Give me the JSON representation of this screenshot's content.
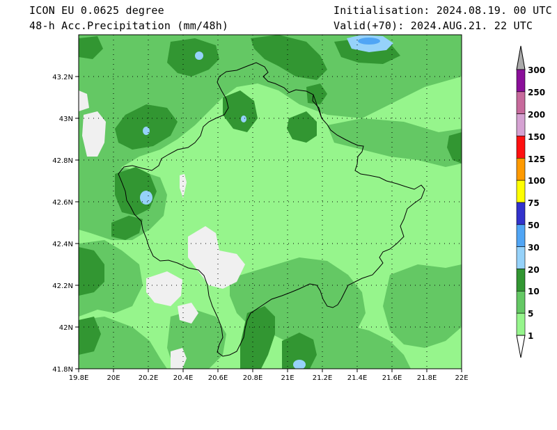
{
  "header": {
    "model_title": "ICON EU 0.0625 degree",
    "field_title": "48-h Acc.Precipitation (mm/48h)",
    "initialisation": "Initialisation: 2024.08.19. 00 UTC",
    "valid": "Valid(+70): 2024.AUG.21. 22 UTC"
  },
  "map": {
    "lon_range": [
      19.8,
      22.0
    ],
    "lat_range": [
      41.8,
      43.4
    ],
    "lat_ticks": [
      "43.2N",
      "43N",
      "42.8N",
      "42.6N",
      "42.4N",
      "42.2N",
      "42N",
      "41.8N"
    ],
    "lon_ticks": [
      "19.8E",
      "20E",
      "20.2E",
      "20.4E",
      "20.6E",
      "20.8E",
      "21E",
      "21.2E",
      "21.4E",
      "21.6E",
      "21.8E",
      "22E"
    ]
  },
  "colorbar": {
    "levels": [
      "300",
      "250",
      "200",
      "150",
      "125",
      "100",
      "75",
      "50",
      "30",
      "20",
      "10",
      "5",
      "1"
    ],
    "colors": [
      "#8a0f99",
      "#c76a9c",
      "#d5a2d2",
      "#ff1010",
      "#ff9a00",
      "#ffff00",
      "#3232cc",
      "#50a5f5",
      "#96d2fa",
      "#329632",
      "#64c864",
      "#96f58c"
    ]
  }
}
